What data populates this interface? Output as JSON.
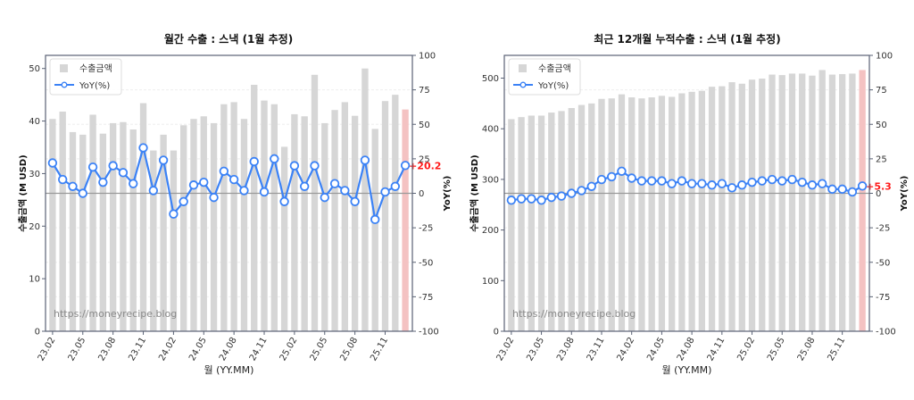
{
  "chart_data": [
    {
      "type": "bar+line",
      "title": "월간 수출 : 스낵 (1월 추정)",
      "xlabel": "월 (YY.MM)",
      "ylabel": "수출금액 (M USD)",
      "y2label": "YoY(%)",
      "ylim": [
        0,
        52.5
      ],
      "y2lim": [
        -100,
        100
      ],
      "yticks": [
        0,
        10,
        20,
        30,
        40,
        50
      ],
      "y2ticks": [
        -100,
        -75,
        -50,
        -25,
        0,
        25,
        50,
        75,
        100
      ],
      "xtick_labels": [
        "23.02",
        "23.05",
        "23.08",
        "23.11",
        "24.02",
        "24.05",
        "24.08",
        "24.11",
        "25.02",
        "25.05",
        "25.08",
        "25.11"
      ],
      "legend": [
        "수출금액",
        "YoY(%)"
      ],
      "legend_position": "upper left",
      "grid": true,
      "categories": [
        "23.02",
        "23.03",
        "23.04",
        "23.05",
        "23.06",
        "23.07",
        "23.08",
        "23.09",
        "23.10",
        "23.11",
        "23.12",
        "24.01",
        "24.02",
        "24.03",
        "24.04",
        "24.05",
        "24.06",
        "24.07",
        "24.08",
        "24.09",
        "24.10",
        "24.11",
        "24.12",
        "25.01",
        "25.02",
        "25.03",
        "25.04",
        "25.05",
        "25.06",
        "25.07",
        "25.08",
        "25.09",
        "25.10",
        "25.11",
        "25.12",
        "26.01"
      ],
      "series": [
        {
          "name": "수출금액",
          "axis": "left",
          "values": [
            40.4,
            41.8,
            37.9,
            37.4,
            41.2,
            37.6,
            39.6,
            39.8,
            38.4,
            43.4,
            34.4,
            37.4,
            34.4,
            39.2,
            40.4,
            40.9,
            39.6,
            43.2,
            43.6,
            40.4,
            46.9,
            43.9,
            43.2,
            35.1,
            41.3,
            40.9,
            48.8,
            39.6,
            42.1,
            43.6,
            41.0,
            50.0,
            38.5,
            43.8,
            45.0,
            42.2
          ]
        },
        {
          "name": "YoY(%)",
          "axis": "right",
          "values": [
            22,
            10,
            5,
            0,
            19,
            8,
            20,
            15,
            7,
            33,
            2,
            24,
            -15,
            -6,
            6,
            8,
            -3,
            16,
            10,
            2,
            23,
            1,
            25,
            -6,
            20,
            5,
            20,
            -3,
            7,
            2,
            -6,
            24,
            -19,
            1,
            5,
            20.2
          ]
        }
      ],
      "highlight_last_bar": true,
      "last_value_label": "+20.2",
      "watermark": "https://moneyrecipe.blog"
    },
    {
      "type": "bar+line",
      "title": "최근 12개월 누적수출 : 스낵 (1월 추정)",
      "xlabel": "월 (YY.MM)",
      "ylabel": "수출금액 (M USD)",
      "y2label": "YoY(%)",
      "ylim": [
        0,
        545
      ],
      "y2lim": [
        -100,
        100
      ],
      "yticks": [
        0,
        100,
        200,
        300,
        400,
        500
      ],
      "y2ticks": [
        -100,
        -75,
        -50,
        -25,
        0,
        25,
        50,
        75,
        100
      ],
      "xtick_labels": [
        "23.02",
        "23.05",
        "23.08",
        "23.11",
        "24.02",
        "24.05",
        "24.08",
        "24.11",
        "25.02",
        "25.05",
        "25.08",
        "25.11"
      ],
      "legend": [
        "수출금액",
        "YoY(%)"
      ],
      "legend_position": "upper left",
      "grid": true,
      "categories": [
        "23.02",
        "23.03",
        "23.04",
        "23.05",
        "23.06",
        "23.07",
        "23.08",
        "23.09",
        "23.10",
        "23.11",
        "23.12",
        "24.01",
        "24.02",
        "24.03",
        "24.04",
        "24.05",
        "24.06",
        "24.07",
        "24.08",
        "24.09",
        "24.10",
        "24.11",
        "24.12",
        "25.01",
        "25.02",
        "25.03",
        "25.04",
        "25.05",
        "25.06",
        "25.07",
        "25.08",
        "25.09",
        "25.10",
        "25.11",
        "25.12",
        "26.01"
      ],
      "series": [
        {
          "name": "수출금액",
          "axis": "left",
          "values": [
            419,
            423,
            426,
            426,
            432,
            435,
            441,
            447,
            450,
            459,
            460,
            468,
            462,
            460,
            462,
            465,
            463,
            470,
            473,
            475,
            483,
            484,
            492,
            489,
            497,
            499,
            507,
            506,
            509,
            509,
            505,
            516,
            507,
            508,
            509,
            516
          ]
        },
        {
          "name": "YoY(%)",
          "axis": "right",
          "values": [
            -5,
            -4,
            -4,
            -5,
            -3,
            -2,
            0,
            2,
            5,
            10,
            12,
            16,
            11,
            9,
            9,
            9,
            7,
            9,
            7,
            7,
            6,
            7,
            4,
            6,
            8,
            9,
            10,
            9,
            10,
            8,
            6,
            7,
            3,
            3,
            1,
            5.3
          ]
        }
      ],
      "highlight_last_bar": true,
      "last_value_label": "+5.3",
      "watermark": "https://moneyrecipe.blog"
    }
  ],
  "colors": {
    "bar": "#d6d6d6",
    "bar_highlight": "#f4c2c2",
    "line": "#3b82f6",
    "zero_line": "#999999",
    "last_label": "#ff1a1a",
    "spine": "#5a6275"
  }
}
